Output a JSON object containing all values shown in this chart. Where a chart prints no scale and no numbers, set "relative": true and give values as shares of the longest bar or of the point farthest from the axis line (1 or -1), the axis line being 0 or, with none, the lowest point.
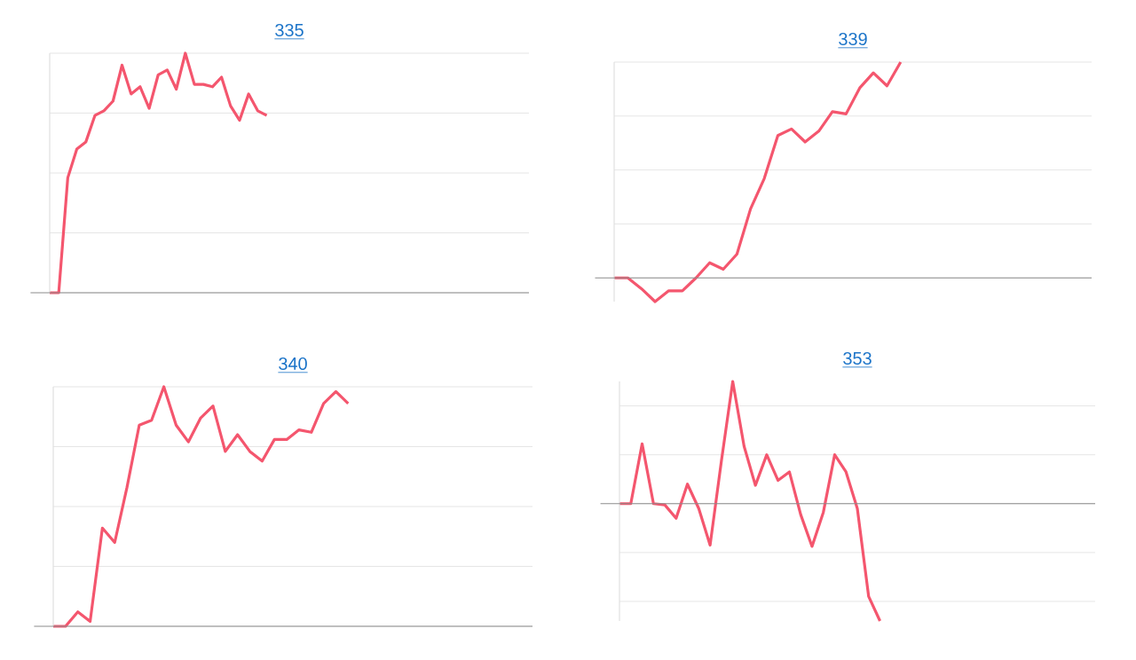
{
  "chart_data": [
    {
      "type": "line",
      "title": "335",
      "relative": true,
      "grid": "y",
      "color": "#f4566e",
      "categories": [
        null,
        null,
        null,
        null,
        null,
        null,
        null,
        null,
        null,
        null,
        null,
        null,
        null,
        null,
        null,
        null,
        null,
        null,
        null,
        null,
        null,
        null,
        null,
        null,
        null,
        null,
        null,
        null,
        null,
        null,
        null,
        null,
        null,
        null,
        null,
        null,
        null,
        null,
        null,
        null,
        null,
        null,
        null,
        null,
        null,
        null,
        null,
        null,
        null,
        null,
        null,
        null,
        null,
        null
      ],
      "values": [
        0,
        0,
        0.48,
        0.6,
        0.63,
        0.74,
        0.76,
        0.8,
        0.95,
        0.83,
        0.86,
        0.77,
        0.91,
        0.93,
        0.85,
        1,
        0.87,
        0.87,
        0.86,
        0.9,
        0.78,
        0.72,
        0.83,
        0.76,
        0.74,
        null,
        null,
        null,
        null,
        null,
        null,
        null,
        null,
        null,
        null,
        null,
        null,
        null,
        null,
        null,
        null,
        null,
        null,
        null,
        null,
        null,
        null,
        null,
        null,
        null,
        null,
        null,
        null,
        null
      ]
    },
    {
      "type": "line",
      "title": "339",
      "relative": true,
      "grid": "y",
      "color": "#f4566e",
      "categories": [
        null,
        null,
        null,
        null,
        null,
        null,
        null,
        null,
        null,
        null,
        null,
        null,
        null,
        null,
        null,
        null,
        null,
        null,
        null,
        null,
        null,
        null,
        null,
        null,
        null,
        null,
        null,
        null,
        null,
        null,
        null,
        null,
        null,
        null,
        null,
        null
      ],
      "values": [
        0,
        0,
        -0.05,
        -0.11,
        -0.06,
        -0.06,
        0,
        0.07,
        0.04,
        0.11,
        0.32,
        0.46,
        0.66,
        0.69,
        0.63,
        0.68,
        0.77,
        0.76,
        0.88,
        0.95,
        0.89,
        1,
        null,
        null,
        null,
        null,
        null,
        null,
        null,
        null,
        null,
        null,
        null,
        null,
        null,
        null
      ]
    },
    {
      "type": "line",
      "title": "340",
      "relative": true,
      "grid": "y",
      "color": "#f4566e",
      "categories": [
        null,
        null,
        null,
        null,
        null,
        null,
        null,
        null,
        null,
        null,
        null,
        null,
        null,
        null,
        null,
        null,
        null,
        null,
        null,
        null,
        null,
        null,
        null,
        null,
        null,
        null,
        null,
        null,
        null,
        null,
        null,
        null,
        null,
        null,
        null,
        null,
        null,
        null,
        null,
        null
      ],
      "values": [
        0,
        0,
        0.06,
        0.02,
        0.41,
        0.35,
        0.58,
        0.84,
        0.86,
        1,
        0.84,
        0.77,
        0.87,
        0.92,
        0.73,
        0.8,
        0.73,
        0.69,
        0.78,
        0.78,
        0.82,
        0.81,
        0.93,
        0.98,
        0.93,
        null,
        null,
        null,
        null,
        null,
        null,
        null,
        null,
        null,
        null,
        null,
        null,
        null,
        null,
        null
      ]
    },
    {
      "type": "line",
      "title": "353",
      "relative": true,
      "grid": "y",
      "color": "#f4566e",
      "categories": [
        null,
        null,
        null,
        null,
        null,
        null,
        null,
        null,
        null,
        null,
        null,
        null,
        null,
        null,
        null,
        null,
        null,
        null,
        null,
        null,
        null,
        null,
        null,
        null,
        null,
        null,
        null,
        null,
        null,
        null,
        null,
        null,
        null,
        null,
        null,
        null,
        null,
        null,
        null,
        null,
        null,
        null,
        null
      ],
      "values": [
        0,
        0,
        0.49,
        0,
        -0.01,
        -0.12,
        0.16,
        -0.04,
        -0.34,
        0.35,
        1,
        0.47,
        0.15,
        0.4,
        0.19,
        0.26,
        -0.09,
        -0.35,
        -0.07,
        0.4,
        0.26,
        -0.04,
        -0.76,
        -0.96,
        null,
        null,
        null,
        null,
        null,
        null,
        null,
        null,
        null,
        null,
        null,
        null,
        null,
        null,
        null,
        null,
        null,
        null,
        null
      ]
    }
  ]
}
